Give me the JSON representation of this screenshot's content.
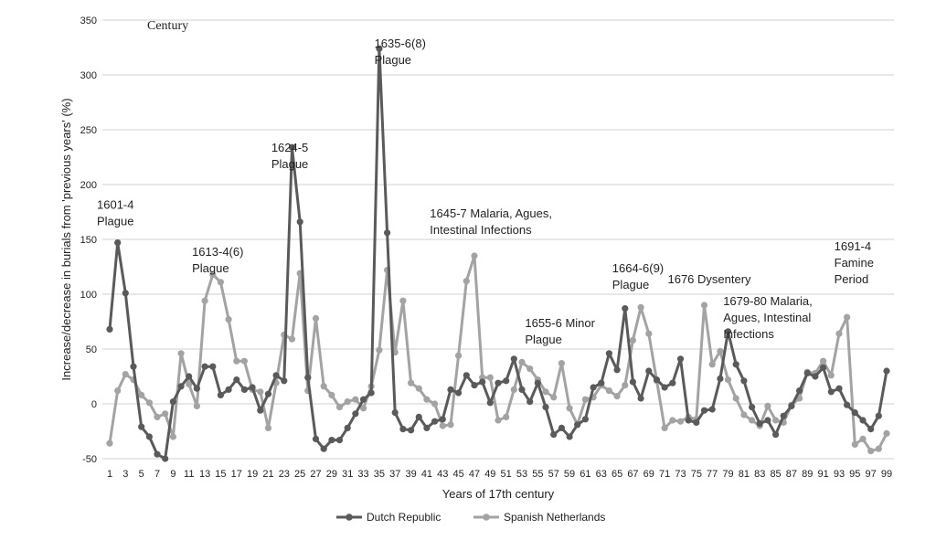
{
  "chart_data": {
    "type": "line",
    "corner_label": "Century",
    "xlabel": "Years of 17th century",
    "ylabel": "Increase/decrease in burials from 'previous years' (%)",
    "ylim": [
      -50,
      350
    ],
    "yticks": [
      -50,
      0,
      50,
      100,
      150,
      200,
      250,
      300,
      350
    ],
    "xlim": [
      1,
      99
    ],
    "xticks": [
      1,
      3,
      5,
      7,
      9,
      11,
      13,
      15,
      17,
      19,
      21,
      23,
      25,
      27,
      29,
      31,
      33,
      35,
      37,
      39,
      41,
      43,
      45,
      47,
      49,
      51,
      53,
      55,
      57,
      59,
      61,
      63,
      65,
      67,
      69,
      71,
      73,
      75,
      77,
      79,
      81,
      83,
      85,
      87,
      89,
      91,
      93,
      95,
      97,
      99
    ],
    "grid": "horizontal",
    "legend_position": "bottom",
    "series": [
      {
        "name": "Dutch Republic",
        "color": "#5a5a5a",
        "points": [
          [
            1,
            68
          ],
          [
            2,
            147
          ],
          [
            3,
            101
          ],
          [
            4,
            34
          ],
          [
            5,
            -21
          ],
          [
            6,
            -30
          ],
          [
            7,
            -46
          ],
          [
            8,
            -50
          ],
          [
            9,
            2
          ],
          [
            10,
            16
          ],
          [
            11,
            25
          ],
          [
            12,
            14
          ],
          [
            13,
            34
          ],
          [
            14,
            34
          ],
          [
            15,
            8
          ],
          [
            16,
            13
          ],
          [
            17,
            22
          ],
          [
            18,
            13
          ],
          [
            19,
            15
          ],
          [
            20,
            -6
          ],
          [
            21,
            9
          ],
          [
            22,
            26
          ],
          [
            23,
            21
          ],
          [
            24,
            234
          ],
          [
            25,
            166
          ],
          [
            26,
            24
          ],
          [
            27,
            -32
          ],
          [
            28,
            -41
          ],
          [
            29,
            -33
          ],
          [
            30,
            -33
          ],
          [
            31,
            -22
          ],
          [
            32,
            -9
          ],
          [
            33,
            4
          ],
          [
            34,
            10
          ],
          [
            35,
            324
          ],
          [
            36,
            156
          ],
          [
            37,
            -8
          ],
          [
            38,
            -23
          ],
          [
            39,
            -24
          ],
          [
            40,
            -12
          ],
          [
            41,
            -22
          ],
          [
            42,
            -16
          ],
          [
            43,
            -14
          ],
          [
            44,
            13
          ],
          [
            45,
            10
          ],
          [
            46,
            26
          ],
          [
            47,
            17
          ],
          [
            48,
            20
          ],
          [
            49,
            1
          ],
          [
            50,
            19
          ],
          [
            51,
            21
          ],
          [
            52,
            41
          ],
          [
            53,
            13
          ],
          [
            54,
            2
          ],
          [
            55,
            19
          ],
          [
            56,
            -3
          ],
          [
            57,
            -28
          ],
          [
            58,
            -22
          ],
          [
            59,
            -30
          ],
          [
            60,
            -19
          ],
          [
            61,
            -14
          ],
          [
            62,
            15
          ],
          [
            63,
            19
          ],
          [
            64,
            46
          ],
          [
            65,
            31
          ],
          [
            66,
            87
          ],
          [
            67,
            20
          ],
          [
            68,
            5
          ],
          [
            69,
            30
          ],
          [
            70,
            22
          ],
          [
            71,
            15
          ],
          [
            72,
            19
          ],
          [
            73,
            41
          ],
          [
            74,
            -15
          ],
          [
            75,
            -17
          ],
          [
            76,
            -6
          ],
          [
            77,
            -5
          ],
          [
            78,
            23
          ],
          [
            79,
            66
          ],
          [
            80,
            36
          ],
          [
            81,
            21
          ],
          [
            82,
            -3
          ],
          [
            83,
            -18
          ],
          [
            84,
            -15
          ],
          [
            85,
            -28
          ],
          [
            86,
            -11
          ],
          [
            87,
            -2
          ],
          [
            88,
            12
          ],
          [
            89,
            28
          ],
          [
            90,
            25
          ],
          [
            91,
            33
          ],
          [
            92,
            11
          ],
          [
            93,
            14
          ],
          [
            94,
            -1
          ],
          [
            95,
            -8
          ],
          [
            96,
            -15
          ],
          [
            97,
            -23
          ],
          [
            98,
            -11
          ],
          [
            99,
            30
          ]
        ]
      },
      {
        "name": "Spanish Netherlands",
        "color": "#a3a3a3",
        "points": [
          [
            1,
            -36
          ],
          [
            2,
            12
          ],
          [
            3,
            27
          ],
          [
            4,
            22
          ],
          [
            5,
            8
          ],
          [
            6,
            1
          ],
          [
            7,
            -12
          ],
          [
            8,
            -9
          ],
          [
            9,
            -30
          ],
          [
            10,
            46
          ],
          [
            11,
            18
          ],
          [
            12,
            -2
          ],
          [
            13,
            94
          ],
          [
            14,
            118
          ],
          [
            15,
            111
          ],
          [
            16,
            77
          ],
          [
            17,
            39
          ],
          [
            18,
            39
          ],
          [
            19,
            13
          ],
          [
            20,
            11
          ],
          [
            21,
            -22
          ],
          [
            22,
            19
          ],
          [
            23,
            63
          ],
          [
            24,
            59
          ],
          [
            25,
            119
          ],
          [
            26,
            12
          ],
          [
            27,
            78
          ],
          [
            28,
            16
          ],
          [
            29,
            8
          ],
          [
            30,
            -3
          ],
          [
            31,
            2
          ],
          [
            32,
            4
          ],
          [
            33,
            -4
          ],
          [
            34,
            16
          ],
          [
            35,
            49
          ],
          [
            36,
            122
          ],
          [
            37,
            47
          ],
          [
            38,
            94
          ],
          [
            39,
            19
          ],
          [
            40,
            14
          ],
          [
            41,
            4
          ],
          [
            42,
            0
          ],
          [
            43,
            -20
          ],
          [
            44,
            -19
          ],
          [
            45,
            44
          ],
          [
            46,
            112
          ],
          [
            47,
            135
          ],
          [
            48,
            24
          ],
          [
            49,
            24
          ],
          [
            50,
            -15
          ],
          [
            51,
            -12
          ],
          [
            52,
            13
          ],
          [
            53,
            38
          ],
          [
            54,
            32
          ],
          [
            55,
            22
          ],
          [
            56,
            11
          ],
          [
            57,
            6
          ],
          [
            58,
            37
          ],
          [
            59,
            -4
          ],
          [
            60,
            -19
          ],
          [
            61,
            4
          ],
          [
            62,
            6
          ],
          [
            63,
            17
          ],
          [
            64,
            12
          ],
          [
            65,
            7
          ],
          [
            66,
            17
          ],
          [
            67,
            58
          ],
          [
            68,
            88
          ],
          [
            69,
            64
          ],
          [
            70,
            21
          ],
          [
            71,
            -22
          ],
          [
            72,
            -15
          ],
          [
            73,
            -16
          ],
          [
            74,
            -12
          ],
          [
            75,
            -14
          ],
          [
            76,
            90
          ],
          [
            77,
            36
          ],
          [
            78,
            48
          ],
          [
            79,
            22
          ],
          [
            80,
            5
          ],
          [
            81,
            -10
          ],
          [
            82,
            -15
          ],
          [
            83,
            -20
          ],
          [
            84,
            -2
          ],
          [
            85,
            -15
          ],
          [
            86,
            -17
          ],
          [
            87,
            -1
          ],
          [
            88,
            5
          ],
          [
            89,
            29
          ],
          [
            90,
            28
          ],
          [
            91,
            39
          ],
          [
            92,
            26
          ],
          [
            93,
            64
          ],
          [
            94,
            79
          ],
          [
            95,
            -37
          ],
          [
            96,
            -32
          ],
          [
            97,
            -43
          ],
          [
            98,
            -41
          ],
          [
            99,
            -27
          ]
        ]
      }
    ],
    "annotations": [
      {
        "lines": [
          "1601-4",
          "Plague"
        ],
        "x": 1,
        "y": 178
      },
      {
        "lines": [
          "1613-4(6)",
          "Plague"
        ],
        "x": 13,
        "y": 135
      },
      {
        "lines": [
          "1624-5",
          "Plague"
        ],
        "x": 23,
        "y": 230
      },
      {
        "lines": [
          "1635-6(8)",
          "Plague"
        ],
        "x": 36,
        "y": 325
      },
      {
        "lines": [
          "1645-7 Malaria, Agues,",
          "Intestinal Infections"
        ],
        "x": 43,
        "y": 170
      },
      {
        "lines": [
          "1655-6 Minor",
          "Plague"
        ],
        "x": 55,
        "y": 70
      },
      {
        "lines": [
          "1664-6(9)",
          "Plague"
        ],
        "x": 66,
        "y": 120
      },
      {
        "lines": [
          "1676 Dysentery"
        ],
        "x": 73,
        "y": 110
      },
      {
        "lines": [
          "1679-80 Malaria,",
          "Agues, Intestinal",
          "Infections"
        ],
        "x": 80,
        "y": 90
      },
      {
        "lines": [
          "1691-4",
          "Famine",
          "Period"
        ],
        "x": 94,
        "y": 140
      }
    ]
  }
}
